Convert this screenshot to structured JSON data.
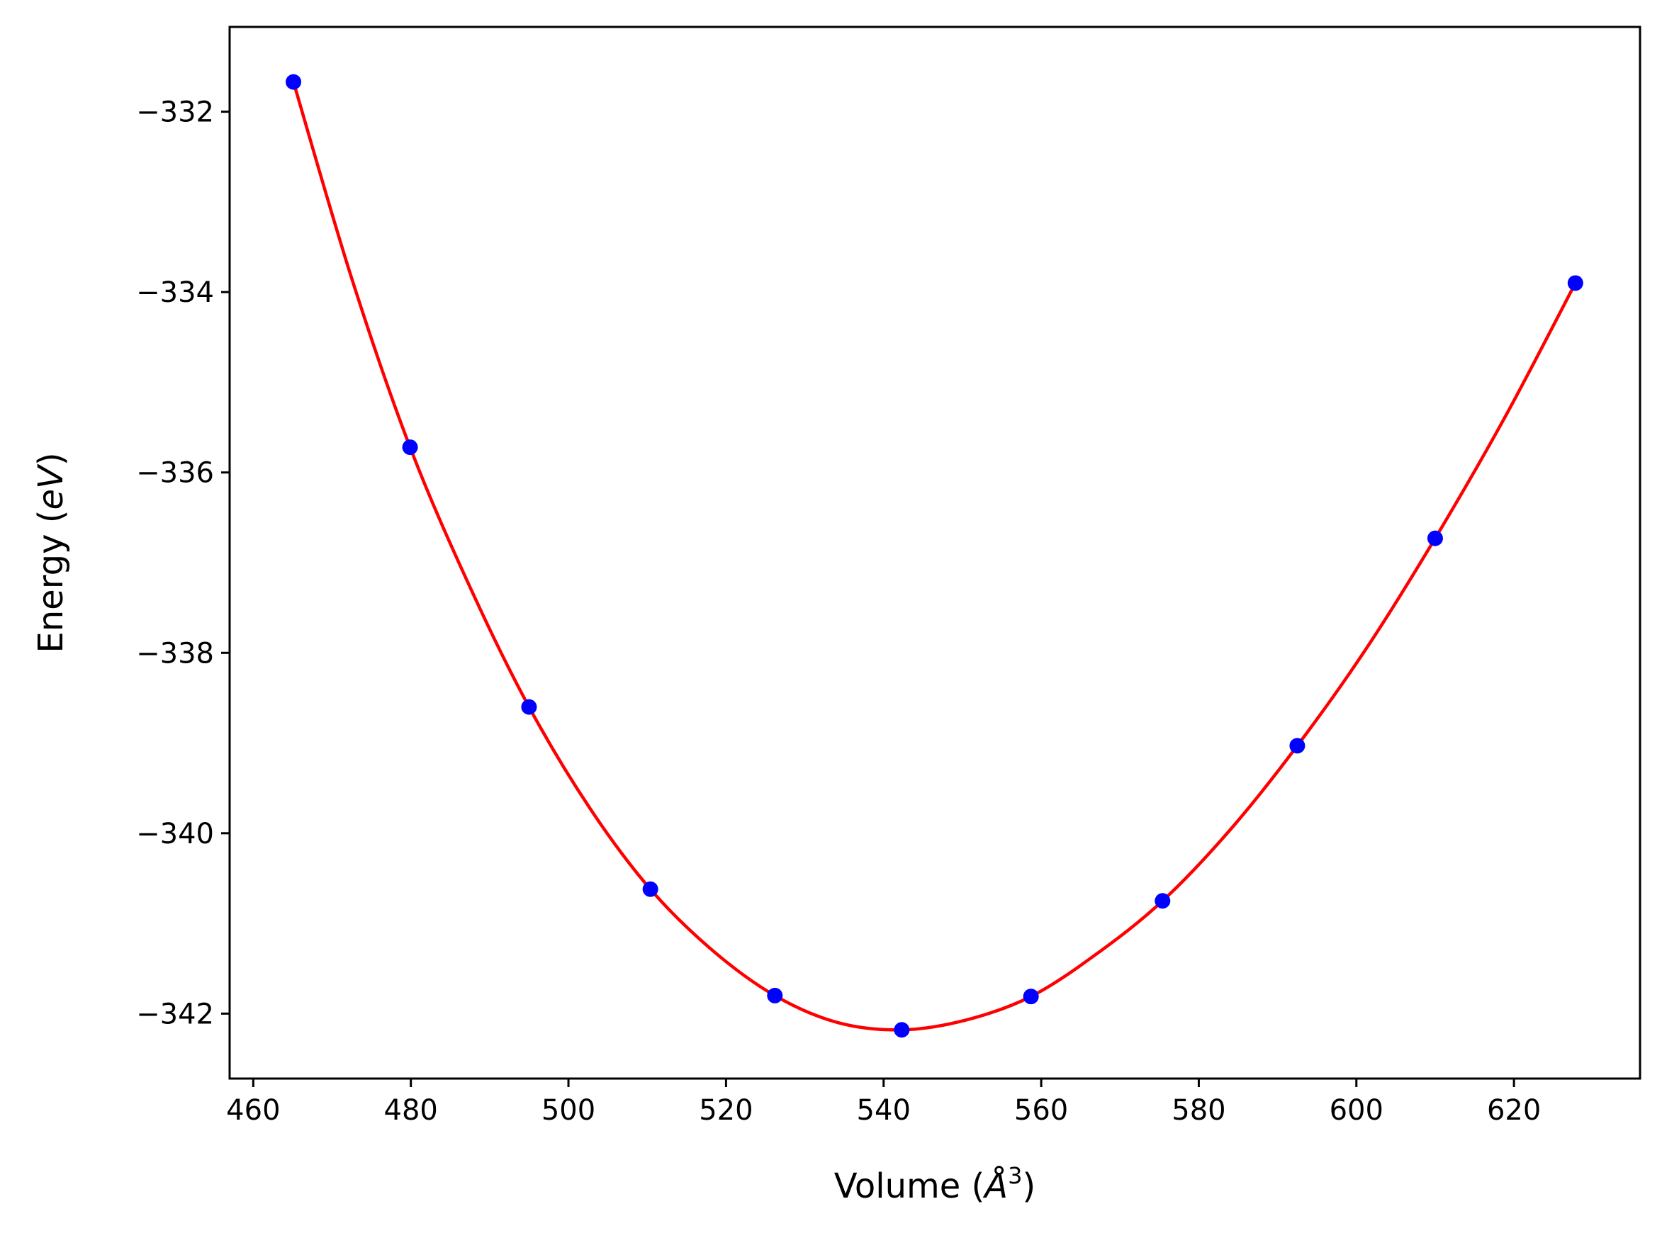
{
  "chart_data": {
    "type": "scatter",
    "title": "",
    "xlabel": "Volume (",
    "xlabel_symbol": "Å",
    "xlabel_sup": "3",
    "xlabel_close": ")",
    "ylabel": "Energy (",
    "ylabel_italic": "eV",
    "ylabel_close": ")",
    "xlim": [
      457,
      636
    ],
    "ylim": [
      -342.72,
      -331.06
    ],
    "xticks": [
      460,
      480,
      500,
      520,
      540,
      560,
      580,
      600,
      620
    ],
    "xtick_labels": [
      "460",
      "480",
      "500",
      "520",
      "540",
      "560",
      "580",
      "600",
      "620"
    ],
    "yticks": [
      -342,
      -340,
      -338,
      -336,
      -334,
      -332
    ],
    "ytick_labels": [
      "−342",
      "−340",
      "−338",
      "−336",
      "−334",
      "−332"
    ],
    "grid": false,
    "series": [
      {
        "kind": "scatter",
        "color": "#0000ff",
        "x": [
          465.1,
          479.9,
          495.0,
          510.4,
          526.2,
          542.3,
          558.7,
          575.4,
          592.5,
          610.0,
          627.8
        ],
        "y": [
          -331.67,
          -335.72,
          -338.6,
          -340.62,
          -341.8,
          -342.18,
          -341.81,
          -340.75,
          -339.03,
          -336.73,
          -333.9
        ]
      },
      {
        "kind": "line",
        "color": "#ff0000",
        "x": [
          465.1,
          472.5,
          479.9,
          487.5,
          495.0,
          502.7,
          510.4,
          518.3,
          526.2,
          534.2,
          542.3,
          550.5,
          558.7,
          567.0,
          575.4,
          584.0,
          592.5,
          601.2,
          610.0,
          618.9,
          627.8
        ],
        "y": [
          -331.67,
          -333.85,
          -335.72,
          -337.27,
          -338.6,
          -339.72,
          -340.62,
          -341.3,
          -341.8,
          -342.1,
          -342.18,
          -342.07,
          -341.81,
          -341.34,
          -340.75,
          -339.96,
          -339.03,
          -337.96,
          -336.73,
          -335.38,
          -333.9
        ]
      }
    ]
  }
}
